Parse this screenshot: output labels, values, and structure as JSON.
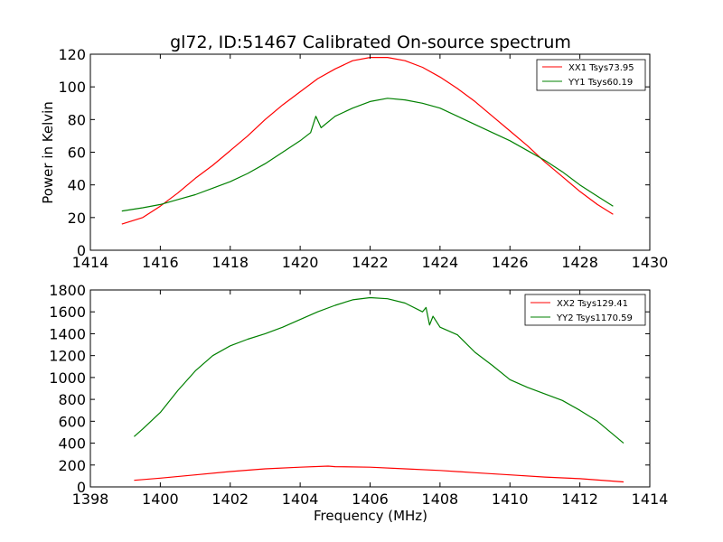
{
  "chart_data": [
    {
      "type": "line",
      "title": "gl72, ID:51467 Calibrated On-source spectrum",
      "xlabel": "",
      "ylabel": "Power in Kelvin",
      "xlim": [
        1414,
        1430
      ],
      "ylim": [
        0,
        120
      ],
      "xticks": [
        1414,
        1416,
        1418,
        1420,
        1422,
        1424,
        1426,
        1428,
        1430
      ],
      "yticks": [
        0,
        20,
        40,
        60,
        80,
        100,
        120
      ],
      "grid": false,
      "legend": "top-right",
      "series": [
        {
          "name": "XX1 Tsys73.95",
          "color": "#ff0000",
          "x": [
            1414.9,
            1415.5,
            1416.0,
            1416.5,
            1417.0,
            1417.5,
            1418.0,
            1418.5,
            1419.0,
            1419.5,
            1420.0,
            1420.5,
            1421.0,
            1421.5,
            1422.0,
            1422.5,
            1423.0,
            1423.5,
            1424.0,
            1424.5,
            1425.0,
            1425.5,
            1426.0,
            1426.5,
            1427.0,
            1427.5,
            1428.0,
            1428.5,
            1428.95
          ],
          "y": [
            16,
            20,
            27,
            35,
            44,
            52,
            61,
            70,
            80,
            89,
            97,
            105,
            111,
            116,
            118,
            118,
            116,
            112,
            106,
            99,
            91,
            82,
            73,
            64,
            54,
            45,
            36,
            28,
            22
          ]
        },
        {
          "name": "YY1 Tsys60.19",
          "color": "#008000",
          "x": [
            1414.9,
            1415.5,
            1416.0,
            1416.5,
            1417.0,
            1417.5,
            1418.0,
            1418.5,
            1419.0,
            1419.5,
            1420.0,
            1420.3,
            1420.45,
            1420.6,
            1421.0,
            1421.5,
            1422.0,
            1422.5,
            1423.0,
            1423.5,
            1424.0,
            1424.5,
            1425.0,
            1425.5,
            1426.0,
            1426.5,
            1427.0,
            1427.5,
            1428.0,
            1428.5,
            1428.95
          ],
          "y": [
            24,
            26,
            28,
            31,
            34,
            38,
            42,
            47,
            53,
            60,
            67,
            72,
            82,
            75,
            82,
            87,
            91,
            93,
            92,
            90,
            87,
            82,
            77,
            72,
            67,
            61,
            55,
            48,
            40,
            33,
            27
          ]
        }
      ]
    },
    {
      "type": "line",
      "title": "",
      "xlabel": "Frequency (MHz)",
      "ylabel": "",
      "xlim": [
        1398,
        1414
      ],
      "ylim": [
        0,
        1800
      ],
      "xticks": [
        1398,
        1400,
        1402,
        1404,
        1406,
        1408,
        1410,
        1412,
        1414
      ],
      "yticks": [
        0,
        200,
        400,
        600,
        800,
        1000,
        1200,
        1400,
        1600,
        1800
      ],
      "grid": false,
      "legend": "top-right",
      "series": [
        {
          "name": "XX2 Tsys129.41",
          "color": "#ff0000",
          "x": [
            1399.25,
            1400.0,
            1401.0,
            1402.0,
            1403.0,
            1404.0,
            1404.8,
            1405.0,
            1406.0,
            1407.0,
            1408.0,
            1409.0,
            1410.0,
            1411.0,
            1412.0,
            1413.25
          ],
          "y": [
            60,
            80,
            110,
            140,
            165,
            180,
            190,
            185,
            180,
            165,
            150,
            130,
            110,
            90,
            75,
            45
          ]
        },
        {
          "name": "YY2 Tsys1170.59",
          "color": "#008000",
          "x": [
            1399.25,
            1399.5,
            1400.0,
            1400.5,
            1401.0,
            1401.5,
            1402.0,
            1402.5,
            1403.0,
            1403.5,
            1404.0,
            1404.5,
            1405.0,
            1405.5,
            1406.0,
            1406.5,
            1407.0,
            1407.5,
            1407.6,
            1407.7,
            1407.8,
            1408.0,
            1408.5,
            1409.0,
            1409.5,
            1410.0,
            1410.5,
            1411.0,
            1411.5,
            1412.0,
            1412.5,
            1413.25
          ],
          "y": [
            460,
            530,
            680,
            880,
            1060,
            1200,
            1290,
            1350,
            1400,
            1460,
            1530,
            1600,
            1660,
            1710,
            1730,
            1720,
            1680,
            1600,
            1640,
            1480,
            1560,
            1460,
            1390,
            1230,
            1110,
            980,
            910,
            850,
            790,
            700,
            600,
            400
          ]
        }
      ]
    }
  ]
}
